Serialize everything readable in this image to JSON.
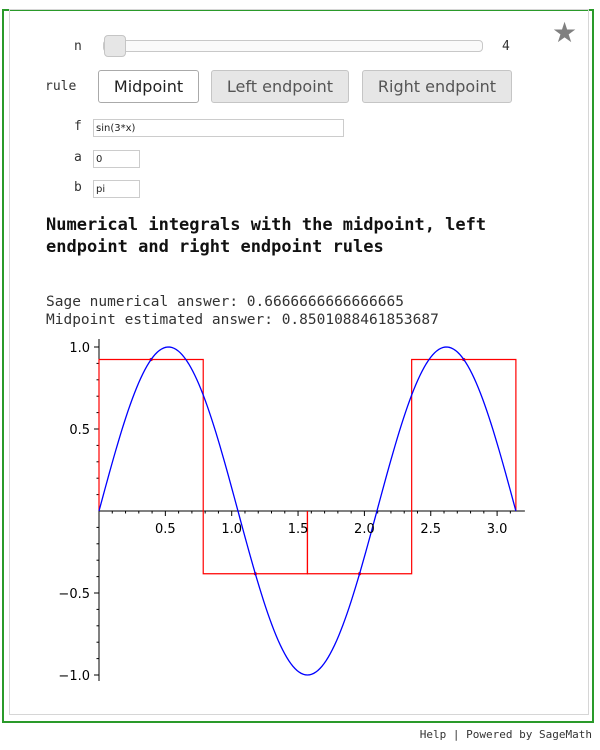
{
  "controls": {
    "n_label": "n",
    "n_value": "4",
    "n_fraction": 0.0,
    "rule_label": "rule",
    "rule_options": [
      "Midpoint",
      "Left endpoint",
      "Right endpoint"
    ],
    "rule_selected": "Midpoint",
    "f_label": "f",
    "f_value": "sin(3*x)",
    "a_label": "a",
    "a_value": "0",
    "b_label": "b",
    "b_value": "pi"
  },
  "output": {
    "title": "Numerical integrals with the midpoint, left endpoint and right endpoint rules",
    "sage_answer": "Sage numerical answer: 0.6666666666666665",
    "estimated_answer": "Midpoint estimated answer: 0.8501088461853687"
  },
  "footer": {
    "help": "Help",
    "separator": "|",
    "powered": "Powered by SageMath"
  },
  "colors": {
    "frame": "#2a9a2a",
    "curve": "#0000ff",
    "rectangles": "#ff0000"
  },
  "icons": {
    "favorite": "star-icon"
  },
  "chart_data": {
    "type": "line",
    "title": "",
    "xlabel": "",
    "ylabel": "",
    "xlim": [
      0,
      3.14159
    ],
    "ylim": [
      -1.0,
      1.0
    ],
    "x_ticks": [
      "0.5",
      "1.0",
      "1.5",
      "2.0",
      "2.5",
      "3.0"
    ],
    "y_ticks": [
      "1.0",
      "0.5",
      "−0.5",
      "−1.0"
    ],
    "series": [
      {
        "function": "sin(3*x)",
        "samples": 200
      }
    ],
    "rectangles": [
      {
        "x0": 0.0,
        "x1": 0.7854,
        "height": 0.9239
      },
      {
        "x0": 0.7854,
        "x1": 1.5708,
        "height": -0.3827
      },
      {
        "x0": 1.5708,
        "x1": 2.3562,
        "height": -0.3827
      },
      {
        "x0": 2.3562,
        "x1": 3.1416,
        "height": 0.9239
      }
    ],
    "midpoints": [
      0.3927,
      1.1781,
      1.9635,
      2.7489
    ]
  }
}
